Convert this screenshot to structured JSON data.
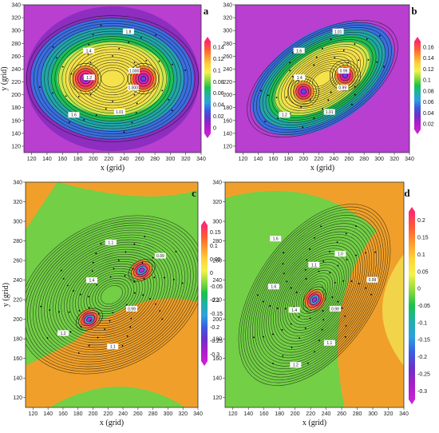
{
  "chart_data": [
    {
      "type": "heatmap",
      "panel_label": "a",
      "xlabel": "x (grid)",
      "ylabel": "y (grid)",
      "xlim": [
        110,
        340
      ],
      "ylim": [
        110,
        340
      ],
      "xticks": [
        120,
        140,
        160,
        180,
        200,
        220,
        240,
        260,
        280,
        300,
        320,
        340
      ],
      "yticks": [
        120,
        140,
        160,
        180,
        200,
        220,
        240,
        260,
        280,
        300,
        320,
        340
      ],
      "colorbar": {
        "ticks": [
          "0.14",
          "0.12",
          "0.1",
          "0.08",
          "0.06",
          "0.04",
          "0.02",
          "0"
        ]
      },
      "contour_labels": [
        "1.000",
        "1.01",
        "1.6",
        "1.2",
        "1.4",
        "1.8",
        "1.000"
      ],
      "field": "twin symmetric vortices",
      "vortex_centers": [
        [
          190,
          225
        ],
        [
          265,
          225
        ]
      ]
    },
    {
      "type": "heatmap",
      "panel_label": "b",
      "xlabel": "x (grid)",
      "ylabel": "",
      "xlim": [
        110,
        340
      ],
      "ylim": [
        110,
        340
      ],
      "xticks": [
        120,
        140,
        160,
        180,
        200,
        220,
        240,
        260,
        280,
        300,
        320,
        340
      ],
      "yticks": [
        120,
        140,
        160,
        180,
        200,
        220,
        240,
        260,
        280,
        300,
        320,
        340
      ],
      "colorbar": {
        "ticks": [
          "0.16",
          "0.14",
          "0.12",
          "0.1",
          "0.08",
          "0.06",
          "0.04",
          "0.02"
        ]
      },
      "contour_labels": [
        "0.99",
        "1.01",
        "1.2",
        "1.4",
        "1.6",
        "1.01",
        "0.99"
      ],
      "field": "tilted elongated vortex pair",
      "vortex_centers": [
        [
          200,
          205
        ],
        [
          255,
          230
        ]
      ]
    },
    {
      "type": "heatmap",
      "panel_label": "c",
      "xlabel": "x (grid)",
      "ylabel": "y (grid)",
      "xlim": [
        110,
        340
      ],
      "ylim": [
        110,
        340
      ],
      "xticks": [
        120,
        140,
        160,
        180,
        200,
        220,
        240,
        260,
        280,
        300,
        320,
        340
      ],
      "yticks": [
        120,
        140,
        160,
        180,
        200,
        220,
        240,
        260,
        280,
        300,
        320,
        340
      ],
      "colorbar": {
        "ticks": [
          "0.15",
          "0.1",
          "0.05",
          "0",
          "-0.05",
          "-0.1",
          "-0.15",
          "-0.2",
          "-0.25",
          "-0.3"
        ]
      },
      "contour_labels": [
        "0.99",
        "1.1",
        "1.2",
        "1.4",
        "1.1",
        "0.99"
      ],
      "field": "rotating vortex pair",
      "vortex_centers": [
        [
          195,
          200
        ],
        [
          265,
          250
        ]
      ]
    },
    {
      "type": "heatmap",
      "panel_label": "d",
      "xlabel": "x (grid)",
      "ylabel": "",
      "xlim": [
        110,
        340
      ],
      "ylim": [
        110,
        340
      ],
      "xticks": [
        120,
        140,
        160,
        180,
        200,
        220,
        240,
        260,
        280,
        300,
        320,
        340
      ],
      "yticks": [
        120,
        140,
        160,
        180,
        200,
        220,
        240,
        260,
        280,
        300,
        320,
        340
      ],
      "colorbar": {
        "ticks": [
          "0.2",
          "0.15",
          "0.1",
          "0.05",
          "0",
          "-0.05",
          "-0.1",
          "-0.15",
          "-0.2",
          "-0.25",
          "-0.3"
        ]
      },
      "contour_labels": [
        "0.99",
        "1.1",
        "1.2",
        "1.4",
        "1.6",
        "1.6",
        "1.1",
        "1.0",
        "0.99"
      ],
      "field": "merged spiral vortex",
      "vortex_centers": [
        [
          225,
          220
        ]
      ]
    }
  ]
}
